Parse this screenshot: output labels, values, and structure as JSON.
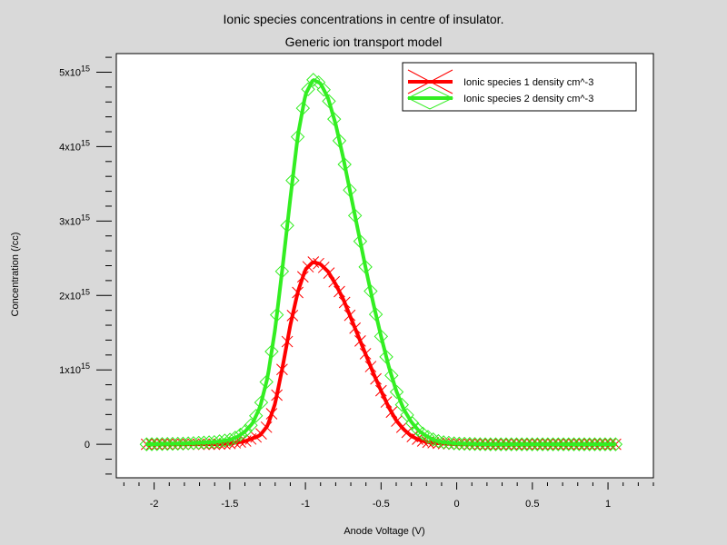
{
  "chart_data": {
    "type": "line",
    "title": "Ionic species concentrations in centre of insulator.",
    "subtitle": "Generic ion transport model",
    "xlabel": "Anode Voltage (V)",
    "ylabel": "Concentration (/cc)",
    "xlim": [
      -2.25,
      1.3
    ],
    "ylim": [
      -450000000000000.0,
      5250000000000000.0
    ],
    "x_ticks": [
      {
        "value": -2,
        "label": "-2"
      },
      {
        "value": -1.5,
        "label": "-1.5"
      },
      {
        "value": -1,
        "label": "-1"
      },
      {
        "value": -0.5,
        "label": "-0.5"
      },
      {
        "value": 0,
        "label": "0"
      },
      {
        "value": 0.5,
        "label": "0.5"
      },
      {
        "value": 1,
        "label": "1"
      }
    ],
    "y_ticks": [
      {
        "value": 0,
        "label": "0",
        "exp": ""
      },
      {
        "value": 1000000000000000.0,
        "label": "1x10",
        "exp": "15"
      },
      {
        "value": 2000000000000000.0,
        "label": "2x10",
        "exp": "15"
      },
      {
        "value": 3000000000000000.0,
        "label": "3x10",
        "exp": "15"
      },
      {
        "value": 4000000000000000.0,
        "label": "4x10",
        "exp": "15"
      },
      {
        "value": 5000000000000000.0,
        "label": "5x10",
        "exp": "15"
      }
    ],
    "grid": false,
    "legend_position": "top-right",
    "series": [
      {
        "name": "Ionic species 1 density cm^-3",
        "color": "#ff0000",
        "marker": "x",
        "x": [
          -2.05,
          -1.8,
          -1.6,
          -1.5,
          -1.4,
          -1.3,
          -1.25,
          -1.2,
          -1.15,
          -1.1,
          -1.05,
          -1.0,
          -0.95,
          -0.9,
          -0.85,
          -0.8,
          -0.75,
          -0.7,
          -0.65,
          -0.6,
          -0.55,
          -0.5,
          -0.45,
          -0.4,
          -0.35,
          -0.3,
          -0.25,
          -0.2,
          -0.1,
          0.0,
          0.2,
          0.5,
          0.8,
          1.05
        ],
        "y": [
          0,
          0,
          0,
          10000000000000.0,
          40000000000000.0,
          120000000000000.0,
          250000000000000.0,
          550000000000000.0,
          1050000000000000.0,
          1600000000000000.0,
          2050000000000000.0,
          2350000000000000.0,
          2450000000000000.0,
          2420000000000000.0,
          2320000000000000.0,
          2150000000000000.0,
          1950000000000000.0,
          1700000000000000.0,
          1450000000000000.0,
          1200000000000000.0,
          950000000000000.0,
          720000000000000.0,
          500000000000000.0,
          320000000000000.0,
          200000000000000.0,
          110000000000000.0,
          60000000000000.0,
          30000000000000.0,
          10000000000000.0,
          0,
          0,
          0,
          0,
          0
        ]
      },
      {
        "name": "Ionic species 2 density cm^-3",
        "color": "#33ee22",
        "marker": "diamond",
        "x": [
          -2.05,
          -1.8,
          -1.6,
          -1.5,
          -1.45,
          -1.4,
          -1.35,
          -1.3,
          -1.25,
          -1.2,
          -1.15,
          -1.1,
          -1.05,
          -1.0,
          -0.95,
          -0.9,
          -0.85,
          -0.8,
          -0.75,
          -0.7,
          -0.65,
          -0.6,
          -0.55,
          -0.5,
          -0.45,
          -0.4,
          -0.35,
          -0.3,
          -0.25,
          -0.2,
          -0.15,
          -0.1,
          0.0,
          0.2,
          0.5,
          0.8,
          1.05
        ],
        "y": [
          0,
          10000000000000.0,
          30000000000000.0,
          60000000000000.0,
          100000000000000.0,
          170000000000000.0,
          280000000000000.0,
          500000000000000.0,
          900000000000000.0,
          1550000000000000.0,
          2400000000000000.0,
          3300000000000000.0,
          4150000000000000.0,
          4700000000000000.0,
          4900000000000000.0,
          4850000000000000.0,
          4650000000000000.0,
          4300000000000000.0,
          3850000000000000.0,
          3350000000000000.0,
          2850000000000000.0,
          2350000000000000.0,
          1880000000000000.0,
          1450000000000000.0,
          1050000000000000.0,
          720000000000000.0,
          470000000000000.0,
          300000000000000.0,
          180000000000000.0,
          110000000000000.0,
          60000000000000.0,
          30000000000000.0,
          10000000000000.0,
          0,
          0,
          0,
          0
        ]
      }
    ]
  }
}
